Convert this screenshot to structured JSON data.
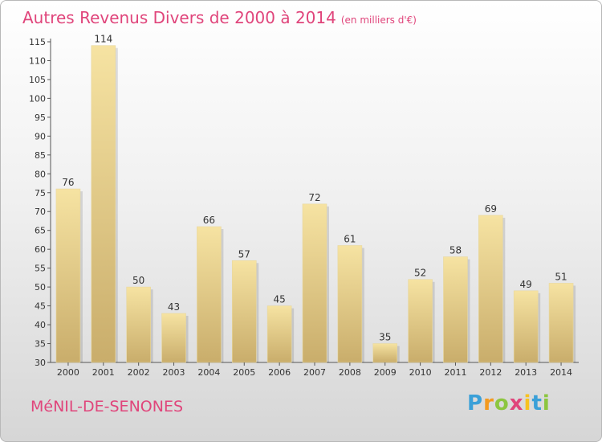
{
  "title": "Autres Revenus Divers de 2000 à 2014",
  "subtitle": "(en milliers d'€)",
  "commune": "MéNIL-DE-SENONES",
  "brand": {
    "letters": [
      "P",
      "r",
      "o",
      "x",
      "i",
      "t",
      "i"
    ],
    "colors": [
      "#3aa0d8",
      "#f39a1f",
      "#8cc63f",
      "#e0457b",
      "#f7c21f",
      "#3aa0d8",
      "#8cc63f"
    ]
  },
  "colors": {
    "accent": "#e0457b",
    "bar_top": "#f6e3a2",
    "bar_bottom": "#c9ad6b"
  },
  "chart_data": {
    "type": "bar",
    "categories": [
      "2000",
      "2001",
      "2002",
      "2003",
      "2004",
      "2005",
      "2006",
      "2007",
      "2008",
      "2009",
      "2010",
      "2011",
      "2012",
      "2013",
      "2014"
    ],
    "values": [
      76,
      114,
      50,
      43,
      66,
      57,
      45,
      72,
      61,
      35,
      52,
      58,
      69,
      49,
      51
    ],
    "ylim": [
      30,
      115
    ],
    "yticks": [
      30,
      35,
      40,
      45,
      50,
      55,
      60,
      65,
      70,
      75,
      80,
      85,
      90,
      95,
      100,
      105,
      110,
      115
    ],
    "grid": false
  }
}
